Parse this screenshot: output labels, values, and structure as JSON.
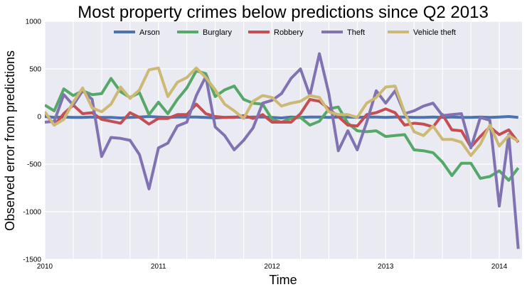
{
  "chart_data": {
    "type": "line",
    "title": "Most property crimes below predictions since Q2 2013",
    "xlabel": "Time",
    "ylabel": "Observed error from predictions",
    "x_tick_labels": [
      "2010",
      "2011",
      "2012",
      "2013",
      "2014"
    ],
    "x_tick_values": [
      2010.0,
      2011.0,
      2012.0,
      2013.0,
      2014.0
    ],
    "xlim": [
      2010.0,
      2014.2
    ],
    "ylim": [
      -1500,
      1000
    ],
    "y_ticks": [
      -1500,
      -1000,
      -500,
      0,
      500,
      1000
    ],
    "grid": true,
    "legend_position": "top",
    "x": [
      2010.0,
      2010.083,
      2010.167,
      2010.25,
      2010.333,
      2010.417,
      2010.5,
      2010.583,
      2010.667,
      2010.75,
      2010.833,
      2010.917,
      2011.0,
      2011.083,
      2011.167,
      2011.25,
      2011.333,
      2011.417,
      2011.5,
      2011.583,
      2011.667,
      2011.75,
      2011.833,
      2011.917,
      2012.0,
      2012.083,
      2012.167,
      2012.25,
      2012.333,
      2012.417,
      2012.5,
      2012.583,
      2012.667,
      2012.75,
      2012.833,
      2012.917,
      2013.0,
      2013.083,
      2013.167,
      2013.25,
      2013.333,
      2013.417,
      2013.5,
      2013.583,
      2013.667,
      2013.75,
      2013.833,
      2013.917,
      2014.0,
      2014.083,
      2014.167
    ],
    "series": [
      {
        "name": "Arson",
        "color": "#4c72b0",
        "values": [
          0,
          -10,
          -5,
          -10,
          -10,
          -5,
          -10,
          -10,
          -15,
          -10,
          -5,
          0,
          -5,
          -10,
          -5,
          -5,
          -5,
          -10,
          -15,
          -10,
          -5,
          -10,
          -5,
          -5,
          -10,
          -15,
          -5,
          -10,
          -5,
          -5,
          -10,
          -5,
          -5,
          -10,
          -5,
          -5,
          -10,
          -5,
          -5,
          -10,
          -10,
          -5,
          -10,
          -5,
          -10,
          -10,
          -5,
          -10,
          -5,
          0,
          -10
        ]
      },
      {
        "name": "Burglary",
        "color": "#55a868",
        "values": [
          120,
          60,
          290,
          220,
          270,
          230,
          240,
          400,
          260,
          200,
          250,
          20,
          150,
          30,
          180,
          300,
          480,
          450,
          210,
          280,
          320,
          180,
          140,
          130,
          -30,
          -60,
          -20,
          -10,
          -90,
          -50,
          80,
          100,
          -70,
          -150,
          -160,
          -150,
          -210,
          -200,
          -190,
          -350,
          -360,
          -380,
          -480,
          -620,
          -490,
          -490,
          -650,
          -630,
          -570,
          -670,
          -540
        ]
      },
      {
        "name": "Robbery",
        "color": "#c44e52",
        "values": [
          40,
          -90,
          30,
          120,
          30,
          40,
          -30,
          -50,
          -70,
          40,
          -10,
          -80,
          -20,
          -20,
          20,
          20,
          130,
          30,
          0,
          -10,
          -10,
          10,
          -20,
          20,
          -60,
          -60,
          -60,
          30,
          180,
          160,
          80,
          0,
          -90,
          -100,
          20,
          40,
          80,
          40,
          -90,
          -70,
          -80,
          -110,
          20,
          -140,
          -150,
          -320,
          -210,
          -110,
          -190,
          -140,
          -270
        ]
      },
      {
        "name": "Theft",
        "color": "#8172b2",
        "values": [
          -60,
          -50,
          230,
          120,
          270,
          180,
          -420,
          -220,
          -230,
          -250,
          -400,
          -760,
          -330,
          -280,
          -100,
          -60,
          220,
          420,
          -110,
          -200,
          -350,
          -250,
          -120,
          140,
          170,
          240,
          400,
          500,
          220,
          660,
          240,
          -360,
          -150,
          -350,
          -60,
          270,
          140,
          270,
          30,
          60,
          110,
          140,
          10,
          20,
          30,
          -330,
          -10,
          -40,
          -940,
          -190,
          -1390
        ]
      },
      {
        "name": "Vehicle theft",
        "color": "#ccb974",
        "values": [
          50,
          -90,
          -30,
          150,
          300,
          90,
          50,
          130,
          310,
          190,
          280,
          490,
          510,
          210,
          360,
          410,
          510,
          410,
          280,
          130,
          60,
          -20,
          160,
          220,
          200,
          110,
          140,
          160,
          220,
          200,
          50,
          20,
          20,
          -10,
          140,
          200,
          310,
          320,
          40,
          -160,
          -200,
          -100,
          -240,
          -240,
          -270,
          -410,
          -290,
          -90,
          -310,
          -200,
          -260
        ]
      }
    ]
  }
}
